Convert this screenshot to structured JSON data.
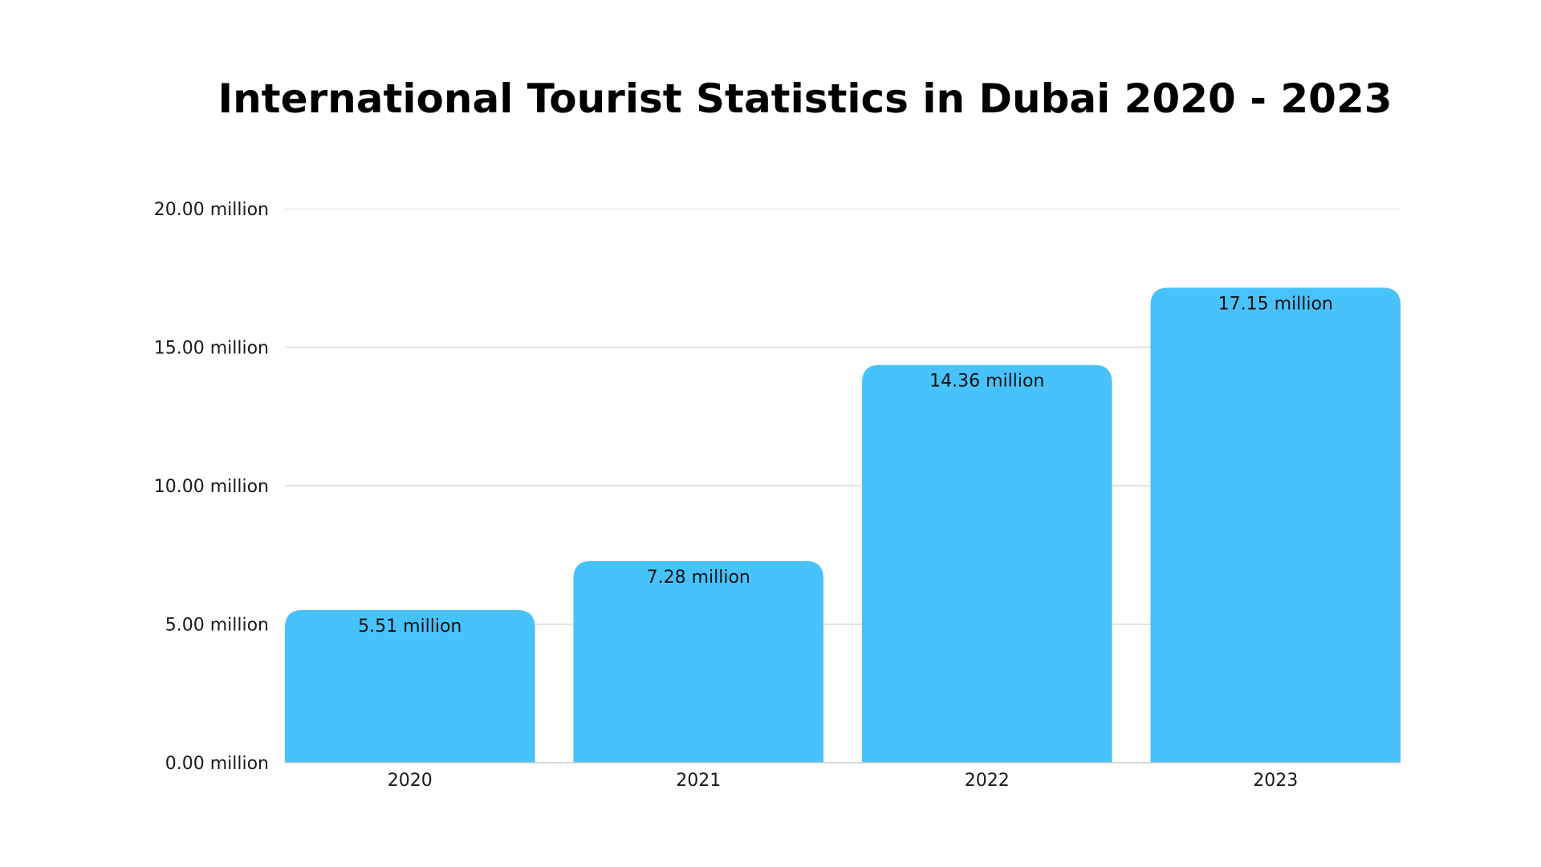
{
  "chart_data": {
    "type": "bar",
    "title": "International Tourist Statistics in Dubai 2020 - 2023",
    "xlabel": "",
    "ylabel": "",
    "categories": [
      "2020",
      "2021",
      "2022",
      "2023"
    ],
    "values": [
      5.51,
      7.28,
      14.36,
      17.15
    ],
    "data_labels": [
      "5.51 million",
      "7.28 million",
      "14.36 million",
      "17.15 million"
    ],
    "ylim": [
      0,
      20
    ],
    "yticks": [
      0,
      5,
      10,
      15,
      20
    ],
    "ytick_labels": [
      "0.00 million",
      "5.00 million",
      "10.00 million",
      "15.00 million",
      "20.00 million"
    ],
    "grid": true,
    "legend": "none",
    "bar_color": "#48c2fb"
  }
}
